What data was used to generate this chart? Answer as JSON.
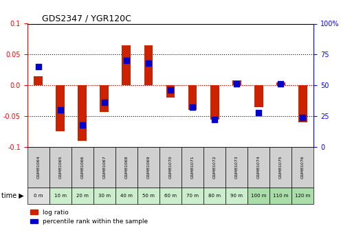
{
  "title": "GDS2347 / YGR120C",
  "samples": [
    "GSM81064",
    "GSM81065",
    "GSM81066",
    "GSM81067",
    "GSM81068",
    "GSM81069",
    "GSM81070",
    "GSM81071",
    "GSM81072",
    "GSM81073",
    "GSM81074",
    "GSM81075",
    "GSM81076"
  ],
  "time_labels": [
    "0 m",
    "10 m",
    "20 m",
    "30 m",
    "40 m",
    "50 m",
    "60 m",
    "70 m",
    "80 m",
    "90 m",
    "100 m",
    "110 m",
    "120 m"
  ],
  "log_ratio": [
    0.015,
    -0.075,
    -0.09,
    -0.043,
    0.065,
    0.065,
    -0.02,
    -0.04,
    -0.055,
    0.008,
    -0.035,
    0.005,
    -0.06
  ],
  "percentile": [
    65,
    30,
    18,
    36,
    70,
    68,
    46,
    32,
    22,
    51,
    28,
    51,
    24
  ],
  "ylim": [
    -0.1,
    0.1
  ],
  "right_ylim": [
    0,
    100
  ],
  "bar_color": "#cc2200",
  "dot_color": "#0000cc",
  "bg_color_light": "#e8e8e8",
  "bg_color_green_light": "#cceecc",
  "bg_color_green_dark": "#aaddaa",
  "time_row_colors": [
    "#e0e0e0",
    "#cceecc",
    "#cceecc",
    "#cceecc",
    "#cceecc",
    "#cceecc",
    "#cceecc",
    "#cceecc",
    "#cceecc",
    "#cceecc",
    "#aaddaa",
    "#aaddaa",
    "#aaddaa"
  ],
  "sample_row_colors": [
    "#d0d0d0",
    "#d0d0d0",
    "#d0d0d0",
    "#d0d0d0",
    "#d0d0d0",
    "#d0d0d0",
    "#d0d0d0",
    "#d0d0d0",
    "#d0d0d0",
    "#d0d0d0",
    "#d0d0d0",
    "#d0d0d0",
    "#d0d0d0"
  ],
  "bar_width": 0.4,
  "dot_size": 40,
  "yticks_left": [
    -0.1,
    -0.05,
    0.0,
    0.05,
    0.1
  ],
  "yticks_right": [
    0,
    25,
    50,
    75,
    100
  ],
  "grid_values": [
    -0.05,
    0.0,
    0.05
  ],
  "legend_items": [
    "log ratio",
    "percentile rank within the sample"
  ]
}
